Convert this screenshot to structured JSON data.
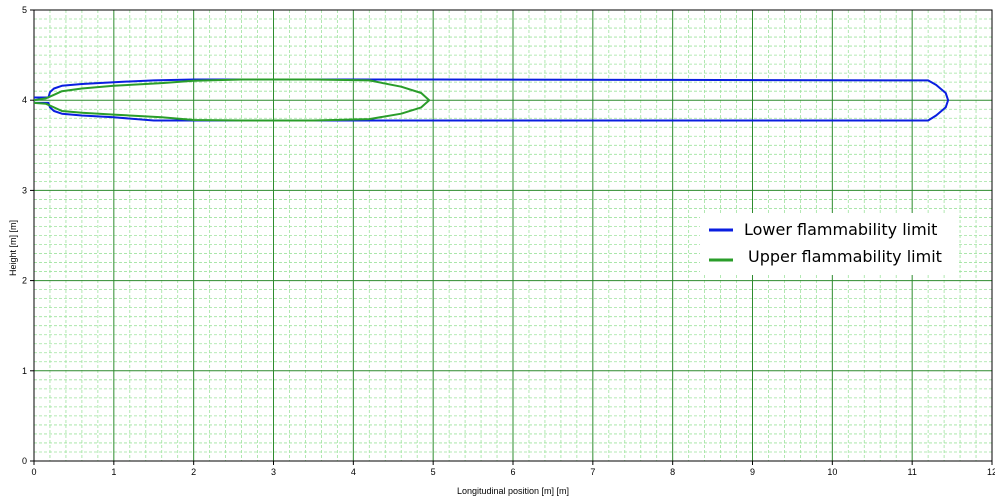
{
  "chart_data": {
    "type": "line",
    "title": "",
    "xlabel": "Longitudinal position [m] [m]",
    "ylabel": "Height [m] [m]",
    "xlim": [
      0,
      12
    ],
    "ylim": [
      0,
      5
    ],
    "x_ticks": [
      "0",
      "1",
      "2",
      "3",
      "4",
      "5",
      "6",
      "7",
      "8",
      "9",
      "10",
      "11",
      "12"
    ],
    "y_ticks": [
      "0",
      "1",
      "2",
      "3",
      "4",
      "5"
    ],
    "grid": true,
    "minor_grid": true,
    "legend_position": "right",
    "series": [
      {
        "name": "Lower flammability limit",
        "color": "#0a1ee0",
        "x": [
          0.0,
          0.18,
          0.2,
          0.25,
          0.35,
          0.6,
          1.0,
          1.5,
          2.0,
          3.0,
          5.0,
          8.0,
          11.2,
          11.3,
          11.42,
          11.45,
          11.42,
          11.3,
          11.2,
          8.0,
          5.0,
          3.0,
          2.0,
          1.5,
          1.0,
          0.6,
          0.35,
          0.25,
          0.2,
          0.18,
          0.0
        ],
        "y": [
          4.03,
          4.03,
          4.09,
          4.13,
          4.16,
          4.18,
          4.2,
          4.22,
          4.23,
          4.23,
          4.23,
          4.225,
          4.22,
          4.17,
          4.08,
          4.0,
          3.92,
          3.83,
          3.775,
          3.775,
          3.775,
          3.775,
          3.775,
          3.775,
          3.81,
          3.83,
          3.85,
          3.88,
          3.92,
          3.97,
          3.97
        ]
      },
      {
        "name": "Upper flammability limit",
        "color": "#2a9d2a",
        "x": [
          0.0,
          0.15,
          0.25,
          0.35,
          0.6,
          1.0,
          1.6,
          2.0,
          2.6,
          3.5,
          4.2,
          4.6,
          4.85,
          4.95,
          4.85,
          4.6,
          4.2,
          3.5,
          2.6,
          2.0,
          1.6,
          1.0,
          0.6,
          0.35,
          0.25,
          0.15,
          0.0
        ],
        "y": [
          4.0,
          4.02,
          4.06,
          4.1,
          4.13,
          4.16,
          4.19,
          4.215,
          4.23,
          4.23,
          4.22,
          4.15,
          4.08,
          4.0,
          3.92,
          3.85,
          3.79,
          3.775,
          3.775,
          3.78,
          3.81,
          3.84,
          3.86,
          3.88,
          3.92,
          3.96,
          3.97
        ]
      }
    ]
  }
}
